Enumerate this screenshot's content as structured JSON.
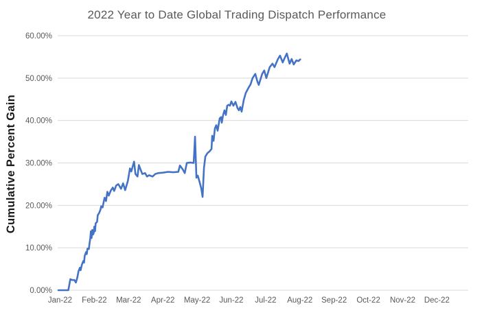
{
  "chart_data": {
    "type": "line",
    "title": "2022 Year to Date Global Trading Dispatch Performance",
    "ylabel": "Cumulative Percent Gain",
    "xlabel": "",
    "legend": "none",
    "grid": "horizontal-only",
    "background_color": "#FFFFFF",
    "grid_color": "#D9D9D9",
    "tick_label_color": "#595959",
    "title_color": "#595959",
    "ylabel_color": "#1A1A1A",
    "ylim": [
      0,
      60
    ],
    "y_tick_values": [
      0,
      10,
      20,
      30,
      40,
      50,
      60
    ],
    "y_tick_labels": [
      "0.00%",
      "10.00%",
      "20.00%",
      "30.00%",
      "40.00%",
      "50.00%",
      "60.00%"
    ],
    "x_tick_months": [
      0,
      1,
      2,
      3,
      4,
      5,
      6,
      7,
      8,
      9,
      10,
      11
    ],
    "x_tick_labels": [
      "Jan-22",
      "Feb-22",
      "Mar-22",
      "Apr-22",
      "May-22",
      "Jun-22",
      "Jul-22",
      "Aug-22",
      "Sep-22",
      "Oct-22",
      "Nov-22",
      "Dec-22"
    ],
    "series": [
      {
        "name": "Cumulative Percent Gain",
        "color": "#4472C4",
        "x": [
          -0.05,
          0.1,
          0.24,
          0.3,
          0.36,
          0.42,
          0.46,
          0.5,
          0.54,
          0.58,
          0.6,
          0.64,
          0.68,
          0.7,
          0.72,
          0.76,
          0.78,
          0.8,
          0.84,
          0.86,
          0.88,
          0.9,
          0.92,
          0.94,
          0.96,
          0.98,
          1.0,
          1.02,
          1.04,
          1.08,
          1.1,
          1.14,
          1.18,
          1.2,
          1.24,
          1.28,
          1.3,
          1.34,
          1.38,
          1.42,
          1.48,
          1.54,
          1.58,
          1.64,
          1.7,
          1.78,
          1.84,
          1.9,
          1.98,
          2.04,
          2.08,
          2.12,
          2.16,
          2.2,
          2.26,
          2.3,
          2.36,
          2.4,
          2.48,
          2.54,
          2.6,
          2.7,
          2.78,
          2.86,
          3.0,
          3.15,
          3.3,
          3.45,
          3.5,
          3.58,
          3.64,
          3.7,
          3.8,
          3.9,
          3.94,
          3.98,
          4.02,
          4.08,
          4.12,
          4.16,
          4.2,
          4.24,
          4.3,
          4.36,
          4.42,
          4.44,
          4.48,
          4.52,
          4.56,
          4.6,
          4.66,
          4.7,
          4.72,
          4.76,
          4.8,
          4.84,
          4.88,
          4.92,
          4.96,
          5.0,
          5.06,
          5.12,
          5.18,
          5.22,
          5.26,
          5.3,
          5.36,
          5.42,
          5.5,
          5.56,
          5.62,
          5.7,
          5.76,
          5.8,
          5.9,
          5.96,
          6.02,
          6.12,
          6.2,
          6.26,
          6.36,
          6.42,
          6.5,
          6.56,
          6.62,
          6.7,
          6.76,
          6.82,
          6.9,
          6.96,
          7.01
        ],
        "y": [
          0.0,
          0.0,
          0.0,
          2.6,
          2.4,
          2.4,
          1.8,
          2.9,
          4.5,
          5.3,
          4.7,
          6.1,
          6.9,
          6.5,
          8.1,
          9.0,
          8.5,
          9.8,
          9.7,
          11.0,
          12.1,
          13.9,
          12.3,
          14.2,
          13.1,
          13.4,
          15.0,
          13.9,
          15.8,
          16.1,
          17.7,
          18.2,
          19.0,
          19.8,
          19.5,
          21.1,
          21.8,
          21.0,
          23.2,
          22.3,
          23.5,
          24.2,
          23.4,
          24.7,
          25.0,
          23.9,
          25.2,
          23.6,
          25.8,
          28.7,
          28.0,
          29.2,
          30.3,
          27.4,
          26.8,
          29.5,
          28.2,
          27.4,
          27.6,
          26.8,
          27.1,
          26.8,
          27.4,
          27.6,
          27.7,
          27.9,
          27.8,
          27.9,
          29.4,
          28.5,
          27.6,
          30.0,
          30.1,
          30.0,
          36.2,
          26.5,
          27.0,
          25.3,
          24.0,
          22.0,
          28.8,
          31.5,
          32.3,
          32.7,
          33.3,
          36.4,
          35.2,
          38.1,
          38.9,
          37.6,
          40.5,
          40.8,
          39.5,
          41.3,
          42.4,
          41.3,
          43.5,
          43.7,
          43.5,
          44.5,
          43.5,
          44.4,
          42.9,
          42.4,
          43.2,
          42.1,
          44.8,
          46.5,
          47.7,
          48.5,
          50.0,
          51.0,
          49.2,
          48.4,
          51.0,
          51.8,
          50.0,
          52.6,
          53.4,
          52.6,
          54.5,
          55.3,
          53.7,
          54.8,
          55.8,
          53.4,
          54.5,
          53.2,
          54.2,
          54.0,
          54.4
        ]
      }
    ]
  }
}
